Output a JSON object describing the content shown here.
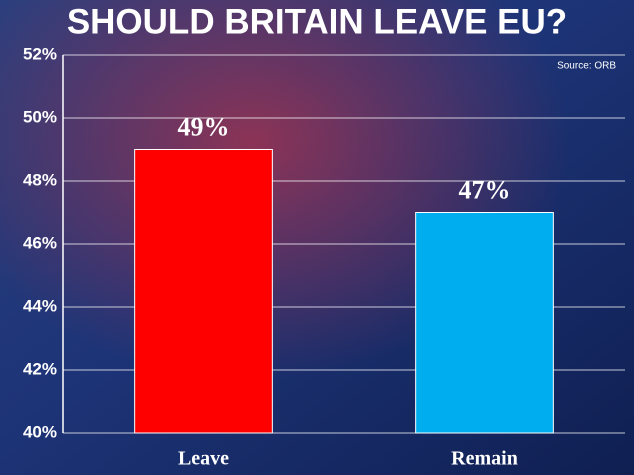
{
  "chart_data": {
    "type": "bar",
    "title": "SHOULD BRITAIN LEAVE EU?",
    "source": "Source: ORB",
    "categories": [
      "Leave",
      "Remain"
    ],
    "values": [
      49,
      47
    ],
    "value_labels": [
      "49%",
      "47%"
    ],
    "colors": [
      "#ff0000",
      "#00adef"
    ],
    "ylim": [
      40,
      52
    ],
    "yticks": [
      {
        "value": 40,
        "label": "40%"
      },
      {
        "value": 42,
        "label": "42%"
      },
      {
        "value": 44,
        "label": "44%"
      },
      {
        "value": 46,
        "label": "46%"
      },
      {
        "value": 48,
        "label": "48%"
      },
      {
        "value": 50,
        "label": "50%"
      },
      {
        "value": 52,
        "label": "52%"
      }
    ],
    "grid": true
  }
}
